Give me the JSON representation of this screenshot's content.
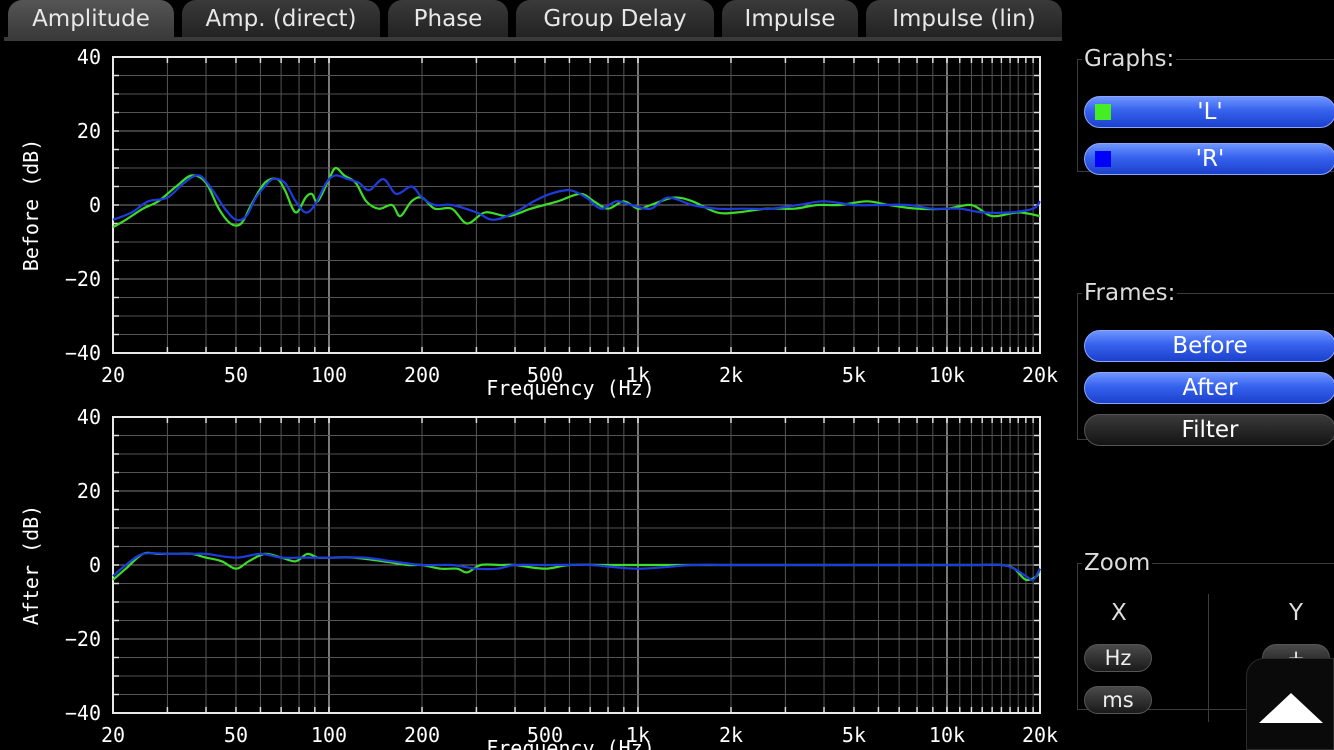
{
  "tabs": [
    {
      "label": "Amplitude",
      "active": true
    },
    {
      "label": "Amp. (direct)",
      "active": false
    },
    {
      "label": "Phase",
      "active": false
    },
    {
      "label": "Group Delay",
      "active": false
    },
    {
      "label": "Impulse",
      "active": false
    },
    {
      "label": "Impulse (lin)",
      "active": false
    }
  ],
  "sidebar": {
    "graphs_title": "Graphs:",
    "graphs": [
      {
        "label": "'L'",
        "color": "#44ee22"
      },
      {
        "label": "'R'",
        "color": "#0000ff"
      }
    ],
    "frames_title": "Frames:",
    "frames": [
      {
        "label": "Before",
        "on": true
      },
      {
        "label": "After",
        "on": true
      },
      {
        "label": "Filter",
        "on": false
      }
    ],
    "zoom_title": "Zoom",
    "zoom_x_label": "X",
    "zoom_y_label": "Y",
    "zoom_x_buttons": [
      "Hz",
      "ms"
    ],
    "zoom_y_buttons": [
      "+",
      "-"
    ]
  },
  "colors": {
    "L": "#3cdc28",
    "R": "#1e3cdc",
    "grid": "#555555"
  },
  "chart_data": [
    {
      "type": "line",
      "ylabel": "Before (dB)",
      "xlabel": "Frequency (Hz)",
      "x_scale": "log",
      "xlim": [
        20,
        20000
      ],
      "ylim": [
        -40,
        40
      ],
      "xticks": [
        {
          "v": 20,
          "label": "20"
        },
        {
          "v": 50,
          "label": "50"
        },
        {
          "v": 100,
          "label": "100"
        },
        {
          "v": 200,
          "label": "200"
        },
        {
          "v": 500,
          "label": "500"
        },
        {
          "v": 1000,
          "label": "1k"
        },
        {
          "v": 2000,
          "label": "2k"
        },
        {
          "v": 5000,
          "label": "5k"
        },
        {
          "v": 10000,
          "label": "10k"
        },
        {
          "v": 20000,
          "label": "20k"
        }
      ],
      "yticks": [
        40,
        20,
        0,
        -20,
        -40
      ],
      "series": [
        {
          "name": "'L'",
          "color": "#3cdc28",
          "points": [
            [
              20,
              -6
            ],
            [
              22,
              -4
            ],
            [
              25,
              -1
            ],
            [
              28,
              1
            ],
            [
              32,
              5
            ],
            [
              36,
              8
            ],
            [
              40,
              6
            ],
            [
              44,
              -1
            ],
            [
              48,
              -5
            ],
            [
              52,
              -5
            ],
            [
              56,
              0
            ],
            [
              62,
              6
            ],
            [
              68,
              7
            ],
            [
              72,
              4
            ],
            [
              78,
              -2
            ],
            [
              84,
              2
            ],
            [
              88,
              3
            ],
            [
              92,
              1
            ],
            [
              100,
              7
            ],
            [
              105,
              10
            ],
            [
              112,
              8
            ],
            [
              122,
              6
            ],
            [
              132,
              1
            ],
            [
              145,
              -1
            ],
            [
              160,
              0
            ],
            [
              170,
              -3
            ],
            [
              185,
              1
            ],
            [
              200,
              2
            ],
            [
              220,
              -1
            ],
            [
              250,
              -1
            ],
            [
              280,
              -5
            ],
            [
              320,
              -2
            ],
            [
              380,
              -3
            ],
            [
              450,
              -1
            ],
            [
              550,
              1
            ],
            [
              650,
              3
            ],
            [
              720,
              1
            ],
            [
              800,
              -1
            ],
            [
              900,
              1
            ],
            [
              1000,
              -1
            ],
            [
              1100,
              0
            ],
            [
              1300,
              2
            ],
            [
              1500,
              1
            ],
            [
              1800,
              -2
            ],
            [
              2100,
              -2
            ],
            [
              2600,
              -1
            ],
            [
              3200,
              -1
            ],
            [
              3800,
              0
            ],
            [
              4500,
              0
            ],
            [
              5500,
              1
            ],
            [
              6500,
              0
            ],
            [
              8000,
              -1
            ],
            [
              10000,
              -1
            ],
            [
              12000,
              0
            ],
            [
              14000,
              -3
            ],
            [
              17000,
              -2
            ],
            [
              20000,
              -3
            ]
          ]
        },
        {
          "name": "'R'",
          "color": "#1e3cdc",
          "points": [
            [
              20,
              -4
            ],
            [
              23,
              -2
            ],
            [
              26,
              1
            ],
            [
              30,
              2
            ],
            [
              34,
              6
            ],
            [
              38,
              8
            ],
            [
              42,
              4
            ],
            [
              46,
              -1
            ],
            [
              50,
              -4
            ],
            [
              54,
              -3
            ],
            [
              58,
              2
            ],
            [
              62,
              5
            ],
            [
              66,
              7
            ],
            [
              72,
              6
            ],
            [
              78,
              1
            ],
            [
              84,
              -2
            ],
            [
              90,
              0
            ],
            [
              98,
              6
            ],
            [
              105,
              8
            ],
            [
              115,
              7
            ],
            [
              125,
              6
            ],
            [
              135,
              4
            ],
            [
              150,
              7
            ],
            [
              165,
              3
            ],
            [
              185,
              5
            ],
            [
              200,
              2
            ],
            [
              220,
              0
            ],
            [
              250,
              0
            ],
            [
              300,
              -2
            ],
            [
              340,
              -4
            ],
            [
              400,
              -2
            ],
            [
              460,
              1
            ],
            [
              520,
              3
            ],
            [
              600,
              4
            ],
            [
              680,
              2
            ],
            [
              760,
              -1
            ],
            [
              850,
              1
            ],
            [
              950,
              0
            ],
            [
              1100,
              -1
            ],
            [
              1250,
              2
            ],
            [
              1500,
              0
            ],
            [
              1800,
              -1
            ],
            [
              2200,
              -1
            ],
            [
              2700,
              -1
            ],
            [
              3300,
              0
            ],
            [
              4000,
              1
            ],
            [
              5000,
              0
            ],
            [
              6000,
              0
            ],
            [
              7500,
              0
            ],
            [
              9000,
              -1
            ],
            [
              11000,
              -1
            ],
            [
              13000,
              -2
            ],
            [
              16000,
              -2
            ],
            [
              19000,
              -1
            ],
            [
              20000,
              1
            ]
          ]
        }
      ]
    },
    {
      "type": "line",
      "ylabel": "After (dB)",
      "xlabel": "Frequency (Hz)",
      "x_scale": "log",
      "xlim": [
        20,
        20000
      ],
      "ylim": [
        -40,
        40
      ],
      "xticks": [
        {
          "v": 20,
          "label": "20"
        },
        {
          "v": 50,
          "label": "50"
        },
        {
          "v": 100,
          "label": "100"
        },
        {
          "v": 200,
          "label": "200"
        },
        {
          "v": 500,
          "label": "500"
        },
        {
          "v": 1000,
          "label": "1k"
        },
        {
          "v": 2000,
          "label": "2k"
        },
        {
          "v": 5000,
          "label": "5k"
        },
        {
          "v": 10000,
          "label": "10k"
        },
        {
          "v": 20000,
          "label": "20k"
        }
      ],
      "yticks": [
        40,
        20,
        0,
        -20,
        -40
      ],
      "series": [
        {
          "name": "'L'",
          "color": "#3cdc28",
          "points": [
            [
              20,
              -4
            ],
            [
              22,
              -1
            ],
            [
              25,
              3
            ],
            [
              28,
              3
            ],
            [
              32,
              3
            ],
            [
              36,
              3
            ],
            [
              40,
              2
            ],
            [
              45,
              1
            ],
            [
              50,
              -1
            ],
            [
              55,
              1
            ],
            [
              62,
              3
            ],
            [
              70,
              2
            ],
            [
              78,
              1
            ],
            [
              85,
              3
            ],
            [
              92,
              2
            ],
            [
              100,
              2
            ],
            [
              120,
              2
            ],
            [
              150,
              1
            ],
            [
              180,
              0
            ],
            [
              200,
              0
            ],
            [
              230,
              -1
            ],
            [
              260,
              -1
            ],
            [
              280,
              -2
            ],
            [
              310,
              0
            ],
            [
              360,
              0
            ],
            [
              400,
              0
            ],
            [
              500,
              -1
            ],
            [
              600,
              0
            ],
            [
              800,
              0
            ],
            [
              1000,
              0
            ],
            [
              1500,
              0
            ],
            [
              2000,
              0
            ],
            [
              3000,
              0
            ],
            [
              5000,
              0
            ],
            [
              8000,
              0
            ],
            [
              12000,
              0
            ],
            [
              15000,
              0
            ],
            [
              16500,
              -1
            ],
            [
              18000,
              -4
            ],
            [
              19500,
              -3
            ],
            [
              20000,
              -1
            ]
          ]
        },
        {
          "name": "'R'",
          "color": "#1e3cdc",
          "points": [
            [
              20,
              -3
            ],
            [
              22,
              0
            ],
            [
              25,
              3
            ],
            [
              30,
              3
            ],
            [
              36,
              3
            ],
            [
              40,
              3
            ],
            [
              50,
              2
            ],
            [
              60,
              3
            ],
            [
              70,
              2
            ],
            [
              80,
              2
            ],
            [
              90,
              2
            ],
            [
              100,
              2
            ],
            [
              130,
              2
            ],
            [
              160,
              1
            ],
            [
              200,
              0
            ],
            [
              250,
              0
            ],
            [
              300,
              -1
            ],
            [
              350,
              -1
            ],
            [
              400,
              0
            ],
            [
              500,
              0
            ],
            [
              700,
              0
            ],
            [
              1000,
              -1
            ],
            [
              1500,
              0
            ],
            [
              2000,
              0
            ],
            [
              3000,
              0
            ],
            [
              5000,
              0
            ],
            [
              8000,
              0
            ],
            [
              12000,
              0
            ],
            [
              15000,
              0
            ],
            [
              16500,
              -1
            ],
            [
              18000,
              -3
            ],
            [
              19000,
              -4
            ],
            [
              20000,
              -1
            ]
          ]
        }
      ]
    }
  ]
}
